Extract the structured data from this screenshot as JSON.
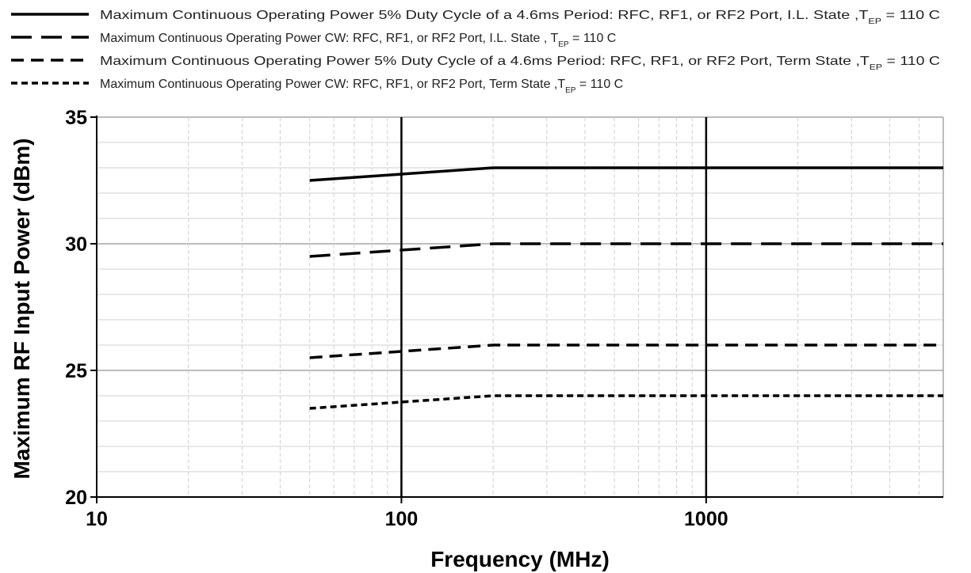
{
  "chart_data": {
    "type": "line",
    "xlabel": "Frequency (MHz)",
    "ylabel": "Maximum RF Input Power (dBm)",
    "xscale": "log",
    "xlim": [
      10,
      6000
    ],
    "ylim": [
      20,
      35
    ],
    "x_ticks": [
      "10",
      "100",
      "1000"
    ],
    "y_ticks": [
      "20",
      "25",
      "30",
      "35"
    ],
    "grid": true,
    "legend_position": "top",
    "series": [
      {
        "name_main": "Maximum Continuous Operating Power 5% Duty Cycle of a 4.6ms Period: RFC, RF1, or RF2 Port, I.L. State ,T",
        "name_sub": "EP",
        "name_tail": " = 110 C",
        "line_style": "solid",
        "x": [
          50,
          200,
          6000
        ],
        "y": [
          32.5,
          33.0,
          33.0
        ]
      },
      {
        "name_main": "Maximum Continuous Operating Power CW: RFC, RF1, or RF2 Port, I.L. State , T",
        "name_sub": "EP",
        "name_tail": " = 110 C",
        "line_style": "long-dash",
        "x": [
          50,
          200,
          6000
        ],
        "y": [
          29.5,
          30.0,
          30.0
        ]
      },
      {
        "name_main": "Maximum Continuous Operating Power 5% Duty Cycle of a 4.6ms Period: RFC, RF1, or RF2 Port, Term State ,T",
        "name_sub": "EP",
        "name_tail": " = 110 C",
        "line_style": "dash",
        "x": [
          50,
          200,
          6000
        ],
        "y": [
          25.5,
          26.0,
          26.0
        ]
      },
      {
        "name_main": "Maximum Continuous Operating Power CW: RFC, RF1, or RF2 Port, Term State ,T",
        "name_sub": "EP",
        "name_tail": " = 110 C",
        "line_style": "short-dash",
        "x": [
          50,
          200,
          6000
        ],
        "y": [
          23.5,
          24.0,
          24.0
        ]
      }
    ],
    "colors": {
      "line": "#000000",
      "major_grid": "#a6a6a6",
      "minor_grid": "#d0d0d0",
      "decade_line": "#000000"
    }
  }
}
